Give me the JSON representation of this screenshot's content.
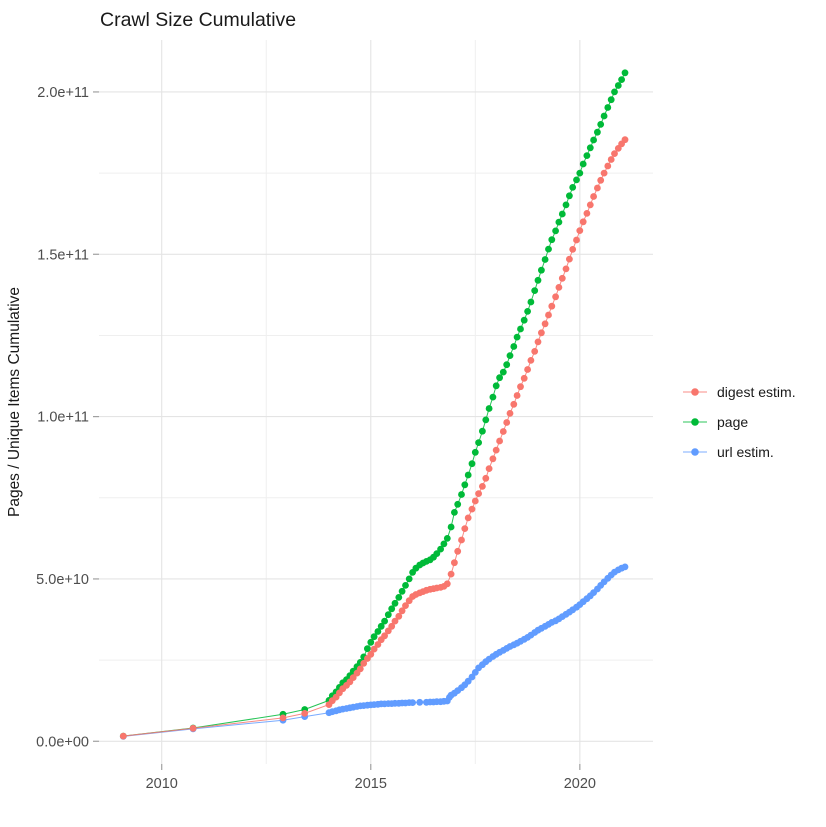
{
  "title": "Crawl Size Cumulative",
  "chart_data": {
    "type": "scatter",
    "title": "Crawl Size Cumulative",
    "xlabel": "",
    "ylabel": "Pages / Unique Items Cumulative",
    "value_unit": "billions (1e9) of pages / unique items",
    "xlim": [
      2008.5,
      2021.75
    ],
    "ylim_billions": [
      -7,
      216
    ],
    "grid": "major and minor, light gray on white",
    "legend_position": "right-center",
    "x_ticks": [
      {
        "value": 2010,
        "label": "2010"
      },
      {
        "value": 2015,
        "label": "2015"
      },
      {
        "value": 2020,
        "label": "2020"
      }
    ],
    "x_minor_ticks": [
      2012.5,
      2017.5
    ],
    "y_ticks": [
      {
        "value": 0,
        "label": "0.0e+00"
      },
      {
        "value": 50,
        "label": "5.0e+10"
      },
      {
        "value": 100,
        "label": "1.0e+11"
      },
      {
        "value": 150,
        "label": "1.5e+11"
      },
      {
        "value": 200,
        "label": "2.0e+11"
      }
    ],
    "y_minor_ticks": [
      25,
      75,
      125,
      175
    ],
    "series": [
      {
        "name": "digest estim.",
        "color": "#F8766D",
        "points": [
          [
            2009.08,
            1.6
          ],
          [
            2010.75,
            4.0
          ],
          [
            2012.9,
            7.2
          ],
          [
            2013.42,
            8.6
          ],
          [
            2014.0,
            11.3
          ],
          [
            2014.08,
            12.5
          ],
          [
            2014.17,
            13.6
          ],
          [
            2014.25,
            14.9
          ],
          [
            2014.33,
            16.2
          ],
          [
            2014.42,
            17.2
          ],
          [
            2014.5,
            18.3
          ],
          [
            2014.58,
            19.6
          ],
          [
            2014.67,
            21.0
          ],
          [
            2014.75,
            22.3
          ],
          [
            2014.83,
            24.0
          ],
          [
            2014.92,
            25.5
          ],
          [
            2015.0,
            26.8
          ],
          [
            2015.08,
            28.4
          ],
          [
            2015.17,
            29.8
          ],
          [
            2015.25,
            31.3
          ],
          [
            2015.33,
            32.5
          ],
          [
            2015.42,
            34.0
          ],
          [
            2015.5,
            35.4
          ],
          [
            2015.58,
            37.0
          ],
          [
            2015.67,
            38.5
          ],
          [
            2015.75,
            40.2
          ],
          [
            2015.83,
            41.8
          ],
          [
            2015.92,
            43.3
          ],
          [
            2016.0,
            44.6
          ],
          [
            2016.08,
            45.2
          ],
          [
            2016.17,
            45.7
          ],
          [
            2016.25,
            46.1
          ],
          [
            2016.33,
            46.5
          ],
          [
            2016.42,
            46.8
          ],
          [
            2016.5,
            47.0
          ],
          [
            2016.58,
            47.2
          ],
          [
            2016.67,
            47.4
          ],
          [
            2016.75,
            47.7
          ],
          [
            2016.83,
            48.5
          ],
          [
            2016.92,
            51.5
          ],
          [
            2017.0,
            55.0
          ],
          [
            2017.08,
            58.5
          ],
          [
            2017.17,
            62.0
          ],
          [
            2017.25,
            65.5
          ],
          [
            2017.33,
            68.8
          ],
          [
            2017.42,
            71.5
          ],
          [
            2017.5,
            74.0
          ],
          [
            2017.58,
            76.3
          ],
          [
            2017.67,
            78.5
          ],
          [
            2017.75,
            81.0
          ],
          [
            2017.83,
            84.0
          ],
          [
            2017.92,
            87.0
          ],
          [
            2018.0,
            89.7
          ],
          [
            2018.08,
            92.5
          ],
          [
            2018.17,
            95.4
          ],
          [
            2018.25,
            98.2
          ],
          [
            2018.33,
            101.0
          ],
          [
            2018.42,
            103.8
          ],
          [
            2018.5,
            106.5
          ],
          [
            2018.58,
            109.2
          ],
          [
            2018.67,
            111.8
          ],
          [
            2018.75,
            114.5
          ],
          [
            2018.83,
            117.3
          ],
          [
            2018.92,
            120.1
          ],
          [
            2019.0,
            123.0
          ],
          [
            2019.08,
            125.8
          ],
          [
            2019.17,
            128.6
          ],
          [
            2019.25,
            131.3
          ],
          [
            2019.33,
            134.0
          ],
          [
            2019.42,
            136.9
          ],
          [
            2019.5,
            139.8
          ],
          [
            2019.58,
            142.6
          ],
          [
            2019.67,
            145.5
          ],
          [
            2019.75,
            148.5
          ],
          [
            2019.83,
            151.5
          ],
          [
            2019.92,
            154.4
          ],
          [
            2020.0,
            157.3
          ],
          [
            2020.08,
            160.0
          ],
          [
            2020.17,
            162.6
          ],
          [
            2020.25,
            165.2
          ],
          [
            2020.33,
            167.8
          ],
          [
            2020.42,
            170.4
          ],
          [
            2020.5,
            172.8
          ],
          [
            2020.58,
            175.0
          ],
          [
            2020.67,
            177.2
          ],
          [
            2020.75,
            179.2
          ],
          [
            2020.83,
            181.0
          ],
          [
            2020.92,
            182.6
          ],
          [
            2021.0,
            184.0
          ],
          [
            2021.08,
            185.3
          ]
        ]
      },
      {
        "name": "page",
        "color": "#00BA38",
        "points": [
          [
            2009.08,
            1.6
          ],
          [
            2010.75,
            4.1
          ],
          [
            2012.9,
            8.3
          ],
          [
            2013.42,
            9.8
          ],
          [
            2014.0,
            12.6
          ],
          [
            2014.08,
            14.0
          ],
          [
            2014.17,
            15.2
          ],
          [
            2014.25,
            16.6
          ],
          [
            2014.33,
            18.0
          ],
          [
            2014.42,
            19.0
          ],
          [
            2014.5,
            20.2
          ],
          [
            2014.58,
            21.6
          ],
          [
            2014.67,
            23.0
          ],
          [
            2014.75,
            24.3
          ],
          [
            2014.83,
            26.0
          ],
          [
            2014.92,
            28.5
          ],
          [
            2015.0,
            30.5
          ],
          [
            2015.08,
            32.2
          ],
          [
            2015.17,
            33.8
          ],
          [
            2015.25,
            35.4
          ],
          [
            2015.33,
            37.0
          ],
          [
            2015.42,
            39.0
          ],
          [
            2015.5,
            40.8
          ],
          [
            2015.58,
            42.5
          ],
          [
            2015.67,
            44.3
          ],
          [
            2015.75,
            46.2
          ],
          [
            2015.83,
            48.0
          ],
          [
            2015.92,
            50.0
          ],
          [
            2016.0,
            52.0
          ],
          [
            2016.08,
            53.3
          ],
          [
            2016.17,
            54.3
          ],
          [
            2016.25,
            54.9
          ],
          [
            2016.33,
            55.4
          ],
          [
            2016.42,
            55.9
          ],
          [
            2016.5,
            56.7
          ],
          [
            2016.58,
            57.8
          ],
          [
            2016.67,
            59.2
          ],
          [
            2016.75,
            60.8
          ],
          [
            2016.83,
            62.5
          ],
          [
            2016.92,
            66.0
          ],
          [
            2017.0,
            70.5
          ],
          [
            2017.08,
            73.0
          ],
          [
            2017.17,
            76.0
          ],
          [
            2017.25,
            79.0
          ],
          [
            2017.33,
            82.0
          ],
          [
            2017.42,
            85.5
          ],
          [
            2017.5,
            89.0
          ],
          [
            2017.58,
            92.0
          ],
          [
            2017.67,
            95.5
          ],
          [
            2017.75,
            99.0
          ],
          [
            2017.83,
            102.5
          ],
          [
            2017.92,
            106.0
          ],
          [
            2018.0,
            109.5
          ],
          [
            2018.08,
            112.0
          ],
          [
            2018.17,
            113.7
          ],
          [
            2018.25,
            116.0
          ],
          [
            2018.33,
            118.8
          ],
          [
            2018.42,
            121.6
          ],
          [
            2018.5,
            124.5
          ],
          [
            2018.58,
            127.0
          ],
          [
            2018.67,
            129.7
          ],
          [
            2018.75,
            132.4
          ],
          [
            2018.83,
            135.3
          ],
          [
            2018.92,
            138.8
          ],
          [
            2019.0,
            142.0
          ],
          [
            2019.08,
            145.1
          ],
          [
            2019.17,
            148.4
          ],
          [
            2019.25,
            151.6
          ],
          [
            2019.33,
            154.5
          ],
          [
            2019.42,
            157.2
          ],
          [
            2019.5,
            159.9
          ],
          [
            2019.58,
            162.4
          ],
          [
            2019.67,
            165.2
          ],
          [
            2019.75,
            168.0
          ],
          [
            2019.83,
            170.6
          ],
          [
            2019.92,
            172.9
          ],
          [
            2020.0,
            175.0
          ],
          [
            2020.08,
            177.8
          ],
          [
            2020.17,
            180.4
          ],
          [
            2020.25,
            182.8
          ],
          [
            2020.33,
            185.2
          ],
          [
            2020.42,
            187.6
          ],
          [
            2020.5,
            190.0
          ],
          [
            2020.58,
            192.6
          ],
          [
            2020.67,
            195.2
          ],
          [
            2020.75,
            197.6
          ],
          [
            2020.83,
            200.0
          ],
          [
            2020.92,
            202.0
          ],
          [
            2021.0,
            203.8
          ],
          [
            2021.08,
            205.9
          ]
        ]
      },
      {
        "name": "url estim.",
        "color": "#619CFF",
        "points": [
          [
            2009.08,
            1.5
          ],
          [
            2010.75,
            3.8
          ],
          [
            2012.9,
            6.5
          ],
          [
            2013.42,
            7.6
          ],
          [
            2014.0,
            8.8
          ],
          [
            2014.08,
            9.1
          ],
          [
            2014.17,
            9.4
          ],
          [
            2014.25,
            9.7
          ],
          [
            2014.33,
            9.9
          ],
          [
            2014.42,
            10.1
          ],
          [
            2014.5,
            10.3
          ],
          [
            2014.58,
            10.5
          ],
          [
            2014.67,
            10.7
          ],
          [
            2014.75,
            10.9
          ],
          [
            2014.83,
            11.0
          ],
          [
            2014.92,
            11.1
          ],
          [
            2015.0,
            11.2
          ],
          [
            2015.08,
            11.3
          ],
          [
            2015.17,
            11.4
          ],
          [
            2015.25,
            11.5
          ],
          [
            2015.33,
            11.5
          ],
          [
            2015.42,
            11.6
          ],
          [
            2015.5,
            11.6
          ],
          [
            2015.58,
            11.7
          ],
          [
            2015.67,
            11.7
          ],
          [
            2015.75,
            11.8
          ],
          [
            2015.83,
            11.8
          ],
          [
            2015.92,
            11.9
          ],
          [
            2016.0,
            11.9
          ],
          [
            2016.17,
            12.0
          ],
          [
            2016.33,
            12.0
          ],
          [
            2016.42,
            12.1
          ],
          [
            2016.5,
            12.1
          ],
          [
            2016.58,
            12.2
          ],
          [
            2016.67,
            12.2
          ],
          [
            2016.75,
            12.3
          ],
          [
            2016.83,
            12.4
          ],
          [
            2016.88,
            13.5
          ],
          [
            2016.92,
            14.2
          ],
          [
            2017.0,
            14.8
          ],
          [
            2017.08,
            15.6
          ],
          [
            2017.17,
            16.5
          ],
          [
            2017.25,
            17.4
          ],
          [
            2017.33,
            18.5
          ],
          [
            2017.42,
            19.8
          ],
          [
            2017.5,
            21.2
          ],
          [
            2017.58,
            22.6
          ],
          [
            2017.67,
            23.6
          ],
          [
            2017.75,
            24.5
          ],
          [
            2017.83,
            25.3
          ],
          [
            2017.92,
            26.1
          ],
          [
            2018.0,
            26.8
          ],
          [
            2018.08,
            27.4
          ],
          [
            2018.17,
            28.0
          ],
          [
            2018.25,
            28.6
          ],
          [
            2018.33,
            29.2
          ],
          [
            2018.42,
            29.7
          ],
          [
            2018.5,
            30.2
          ],
          [
            2018.58,
            30.8
          ],
          [
            2018.67,
            31.4
          ],
          [
            2018.75,
            32.0
          ],
          [
            2018.83,
            32.7
          ],
          [
            2018.92,
            33.5
          ],
          [
            2019.0,
            34.2
          ],
          [
            2019.08,
            34.8
          ],
          [
            2019.17,
            35.4
          ],
          [
            2019.25,
            36.0
          ],
          [
            2019.33,
            36.6
          ],
          [
            2019.42,
            37.1
          ],
          [
            2019.5,
            37.7
          ],
          [
            2019.58,
            38.4
          ],
          [
            2019.67,
            39.1
          ],
          [
            2019.75,
            39.8
          ],
          [
            2019.83,
            40.5
          ],
          [
            2019.92,
            41.3
          ],
          [
            2020.0,
            42.1
          ],
          [
            2020.08,
            43.0
          ],
          [
            2020.17,
            43.9
          ],
          [
            2020.25,
            44.8
          ],
          [
            2020.33,
            45.8
          ],
          [
            2020.42,
            46.9
          ],
          [
            2020.5,
            48.0
          ],
          [
            2020.58,
            49.1
          ],
          [
            2020.67,
            50.2
          ],
          [
            2020.75,
            51.2
          ],
          [
            2020.83,
            52.1
          ],
          [
            2020.92,
            52.8
          ],
          [
            2021.0,
            53.3
          ],
          [
            2021.08,
            53.7
          ]
        ]
      }
    ]
  },
  "legend": {
    "items": [
      {
        "label": "digest estim.",
        "color": "#F8766D"
      },
      {
        "label": "page",
        "color": "#00BA38"
      },
      {
        "label": "url estim.",
        "color": "#619CFF"
      }
    ]
  }
}
